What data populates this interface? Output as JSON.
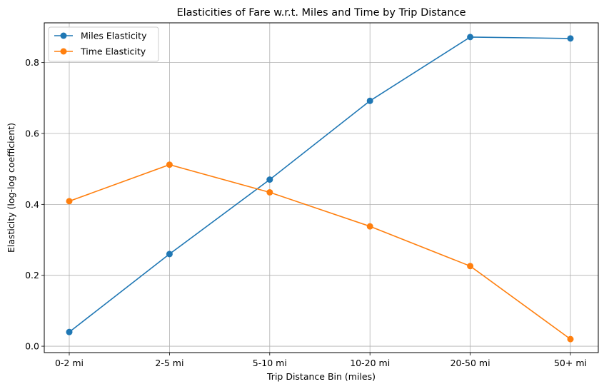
{
  "chart_data": {
    "type": "line",
    "title": "Elasticities of Fare w.r.t. Miles and Time by Trip Distance",
    "xlabel": "Trip Distance Bin (miles)",
    "ylabel": "Elasticity (log-log coefficient)",
    "categories": [
      "0-2 mi",
      "2-5 mi",
      "5-10 mi",
      "10-20 mi",
      "20-50 mi",
      "50+ mi"
    ],
    "ylim": [
      -0.018,
      0.912
    ],
    "yticks": [
      "0.0",
      "0.2",
      "0.4",
      "0.6",
      "0.8"
    ],
    "grid": true,
    "legend_position": "top-left",
    "series": [
      {
        "name": "Miles Elasticity",
        "color": "#1f77b4",
        "values": [
          0.04,
          0.26,
          0.47,
          0.692,
          0.872,
          0.868
        ]
      },
      {
        "name": "Time Elasticity",
        "color": "#ff7f0e",
        "values": [
          0.409,
          0.512,
          0.434,
          0.338,
          0.226,
          0.02
        ]
      }
    ]
  }
}
